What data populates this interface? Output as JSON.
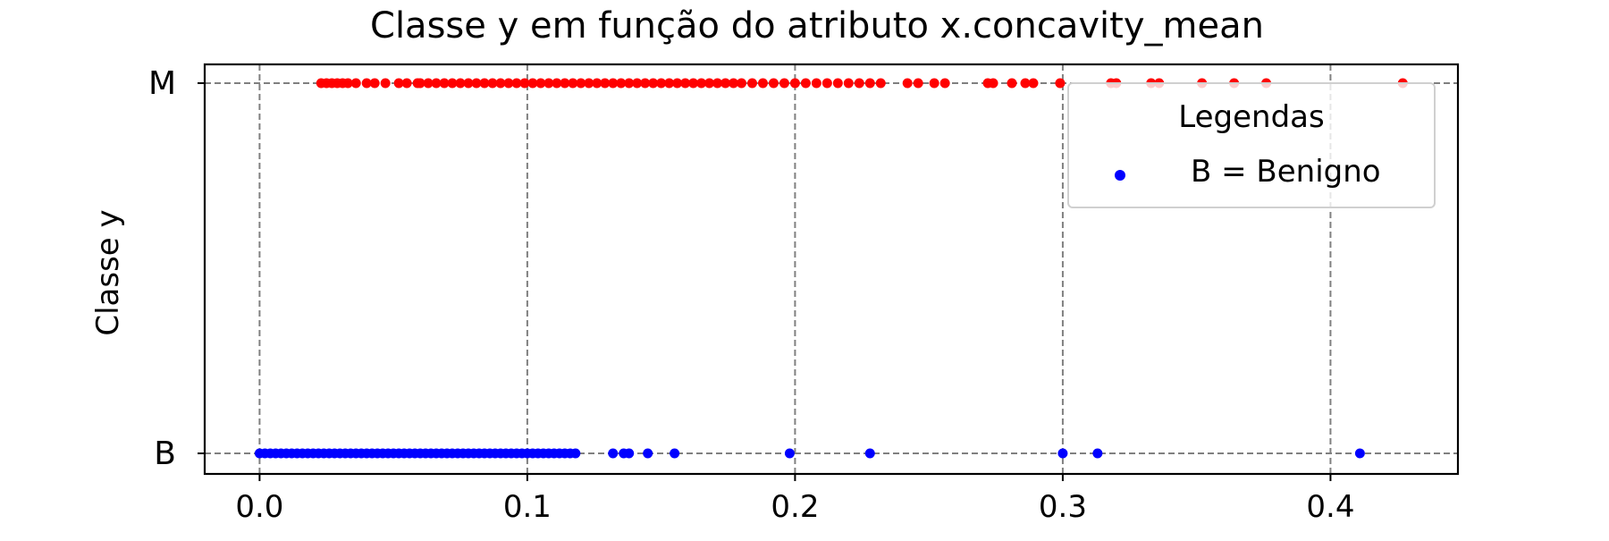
{
  "chart_data": {
    "type": "scatter",
    "title": "Classe y em função do atributo x.concavity_mean",
    "xlabel": "",
    "ylabel": "Classe y",
    "xlim": [
      -0.0205,
      0.4476
    ],
    "xticks": [
      "0.0",
      "0.1",
      "0.2",
      "0.3",
      "0.4"
    ],
    "xtick_values": [
      0.0,
      0.1,
      0.2,
      0.3,
      0.4
    ],
    "yticks": [
      "B",
      "M"
    ],
    "grid": true,
    "legend": {
      "title": "Legendas",
      "position": "top-right",
      "entries": [
        {
          "label": "B = Benigno",
          "color": "#0000ff"
        }
      ]
    },
    "series": [
      {
        "category": "M",
        "color": "#ff0000",
        "x": [
          0.023,
          0.025,
          0.027,
          0.029,
          0.031,
          0.033,
          0.036,
          0.04,
          0.043,
          0.047,
          0.052,
          0.055,
          0.059,
          0.06,
          0.063,
          0.066,
          0.069,
          0.072,
          0.075,
          0.078,
          0.081,
          0.084,
          0.087,
          0.09,
          0.093,
          0.096,
          0.099,
          0.102,
          0.105,
          0.108,
          0.111,
          0.114,
          0.117,
          0.12,
          0.123,
          0.126,
          0.129,
          0.132,
          0.135,
          0.138,
          0.141,
          0.144,
          0.147,
          0.15,
          0.153,
          0.156,
          0.159,
          0.162,
          0.165,
          0.168,
          0.171,
          0.174,
          0.177,
          0.18,
          0.184,
          0.188,
          0.192,
          0.196,
          0.2,
          0.204,
          0.208,
          0.212,
          0.216,
          0.22,
          0.224,
          0.228,
          0.232,
          0.242,
          0.246,
          0.252,
          0.256,
          0.272,
          0.274,
          0.281,
          0.286,
          0.289,
          0.299,
          0.318,
          0.32,
          0.333,
          0.336,
          0.352,
          0.364,
          0.376,
          0.427
        ],
        "y": "M"
      },
      {
        "category": "B",
        "color": "#0000ff",
        "x": [
          0.0,
          0.002,
          0.004,
          0.006,
          0.008,
          0.01,
          0.012,
          0.014,
          0.016,
          0.018,
          0.02,
          0.022,
          0.024,
          0.026,
          0.028,
          0.03,
          0.032,
          0.034,
          0.036,
          0.038,
          0.04,
          0.042,
          0.044,
          0.046,
          0.048,
          0.05,
          0.052,
          0.054,
          0.056,
          0.058,
          0.06,
          0.062,
          0.064,
          0.066,
          0.068,
          0.07,
          0.072,
          0.074,
          0.076,
          0.078,
          0.08,
          0.082,
          0.084,
          0.086,
          0.088,
          0.09,
          0.092,
          0.094,
          0.096,
          0.098,
          0.1,
          0.102,
          0.104,
          0.106,
          0.108,
          0.11,
          0.112,
          0.114,
          0.116,
          0.118,
          0.132,
          0.136,
          0.138,
          0.145,
          0.155,
          0.198,
          0.228,
          0.3,
          0.313,
          0.411
        ],
        "y": "B"
      }
    ]
  }
}
